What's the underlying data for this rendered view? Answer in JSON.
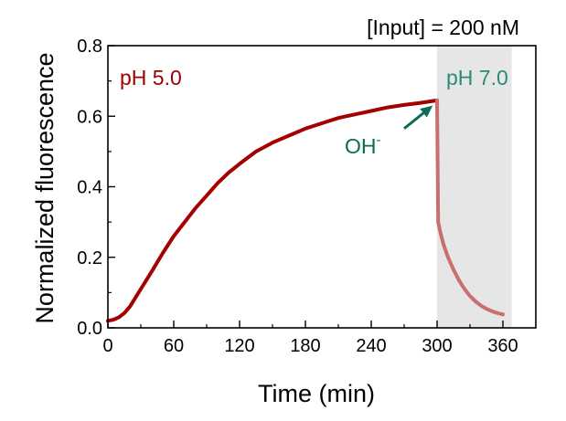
{
  "chart_data": {
    "type": "line",
    "title": "[Input] = 200 nM",
    "xlabel": "Time (min)",
    "ylabel": "Normalized fluorescence",
    "xlim": [
      0,
      390
    ],
    "ylim": [
      0,
      0.8
    ],
    "xticks": [
      0,
      60,
      120,
      180,
      240,
      300,
      360
    ],
    "yticks": [
      0.0,
      0.2,
      0.4,
      0.6,
      0.8
    ],
    "ytick_labels": [
      "0.0",
      "0.2",
      "0.4",
      "0.6",
      "0.8"
    ],
    "grid": false,
    "shaded_region": {
      "x": [
        300,
        368
      ],
      "color": "#e6e6e6"
    },
    "annotations": [
      {
        "text": "pH 5.0",
        "color": "#a00000"
      },
      {
        "text": "pH 7.0",
        "color": "#2e8b78"
      },
      {
        "text": "OH",
        "superscript": "-",
        "color": "#0b6b57",
        "arrow_from": [
          270,
          0.565
        ],
        "arrow_to": [
          296,
          0.63
        ]
      }
    ],
    "series": [
      {
        "color": "#a40000",
        "x": [
          0,
          5,
          10,
          15,
          20,
          30,
          40,
          50,
          60,
          70,
          80,
          90,
          100,
          110,
          120,
          135,
          150,
          165,
          180,
          195,
          210,
          225,
          240,
          255,
          270,
          285,
          300
        ],
        "y": [
          0.02,
          0.023,
          0.03,
          0.042,
          0.06,
          0.11,
          0.16,
          0.212,
          0.26,
          0.3,
          0.34,
          0.375,
          0.41,
          0.44,
          0.465,
          0.5,
          0.525,
          0.545,
          0.565,
          0.58,
          0.595,
          0.605,
          0.615,
          0.625,
          0.632,
          0.638,
          0.645
        ]
      },
      {
        "color": "#c87070",
        "x": [
          300,
          301,
          303,
          306,
          310,
          315,
          320,
          325,
          330,
          335,
          340,
          345,
          350,
          355,
          360
        ],
        "y": [
          0.645,
          0.3,
          0.27,
          0.235,
          0.2,
          0.165,
          0.135,
          0.11,
          0.09,
          0.075,
          0.063,
          0.054,
          0.047,
          0.042,
          0.038
        ]
      }
    ]
  }
}
